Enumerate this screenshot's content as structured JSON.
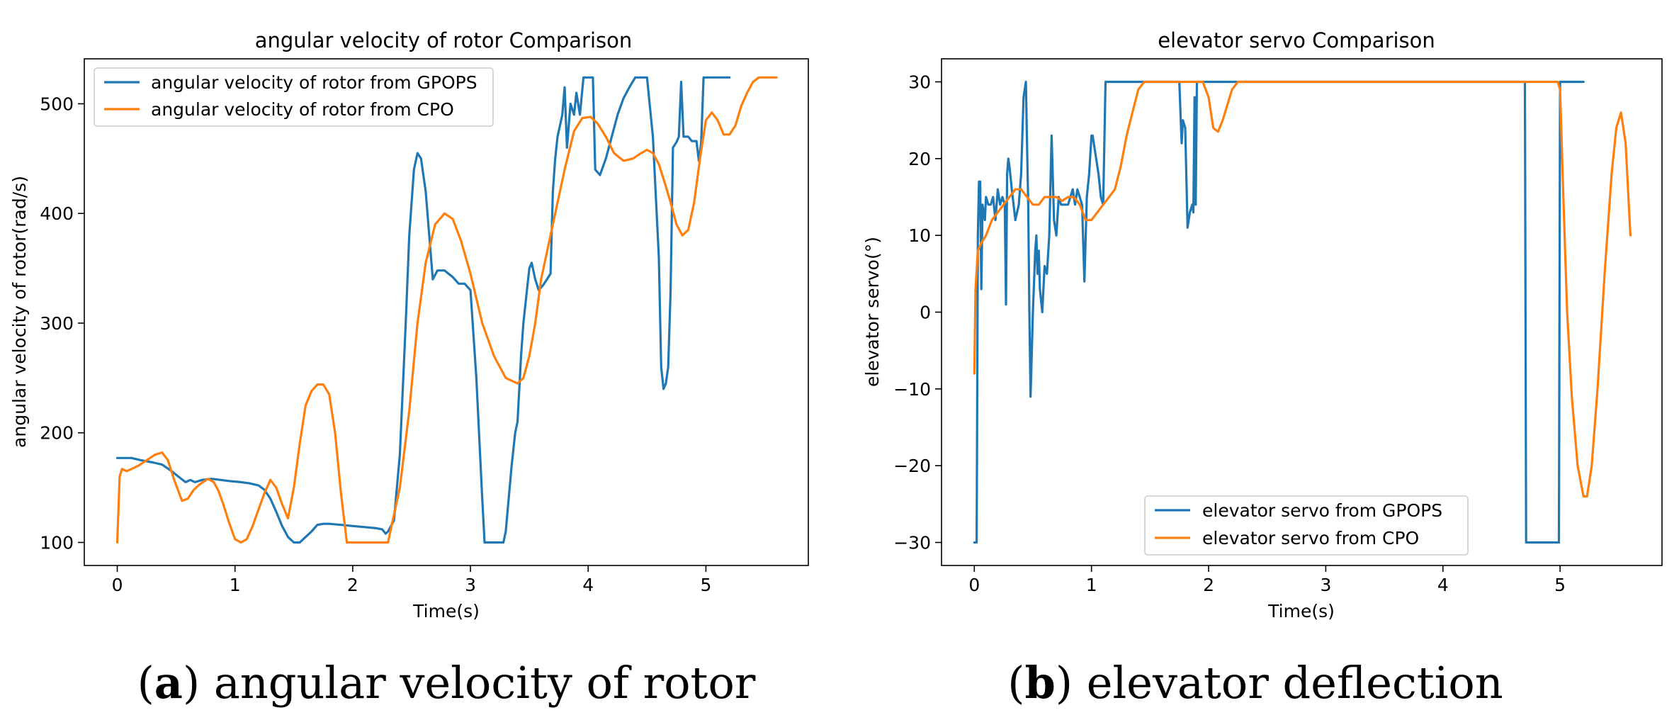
{
  "figure": {
    "caption_a_letter": "a",
    "caption_a_text": "angular velocity of rotor",
    "caption_b_letter": "b",
    "caption_b_text": "elevator deflection"
  },
  "chart_data": [
    {
      "type": "line",
      "title": "angular velocity of rotor Comparison",
      "xlabel": "Time(s)",
      "ylabel": "angular velocity of rotor(rad/s)",
      "xlim": [
        -0.28,
        5.87
      ],
      "ylim": [
        79,
        541
      ],
      "xticks": [
        0,
        1,
        2,
        3,
        4,
        5
      ],
      "yticks": [
        100,
        200,
        300,
        400,
        500
      ],
      "legend_position": "upper-left",
      "series": [
        {
          "name": "angular velocity of rotor from GPOPS",
          "color": "#1f77b4",
          "x": [
            0,
            0.05,
            0.12,
            0.2,
            0.3,
            0.38,
            0.45,
            0.52,
            0.58,
            0.62,
            0.66,
            0.72,
            0.8,
            0.88,
            0.95,
            1.05,
            1.12,
            1.2,
            1.25,
            1.3,
            1.35,
            1.4,
            1.45,
            1.5,
            1.55,
            1.6,
            1.65,
            1.7,
            1.75,
            1.8,
            1.9,
            2.0,
            2.1,
            2.2,
            2.25,
            2.28,
            2.3,
            2.35,
            2.4,
            2.45,
            2.48,
            2.52,
            2.55,
            2.58,
            2.62,
            2.65,
            2.68,
            2.72,
            2.78,
            2.85,
            2.9,
            2.95,
            3.0,
            3.05,
            3.1,
            3.12,
            3.15,
            3.2,
            3.25,
            3.28,
            3.3,
            3.35,
            3.38,
            3.4,
            3.43,
            3.45,
            3.48,
            3.5,
            3.52,
            3.55,
            3.58,
            3.62,
            3.65,
            3.68,
            3.7,
            3.72,
            3.74,
            3.76,
            3.78,
            3.8,
            3.82,
            3.85,
            3.88,
            3.9,
            3.93,
            3.96,
            3.98,
            4.0,
            4.02,
            4.04,
            4.06,
            4.1,
            4.15,
            4.2,
            4.25,
            4.3,
            4.35,
            4.4,
            4.45,
            4.48,
            4.5,
            4.55,
            4.6,
            4.62,
            4.64,
            4.66,
            4.68,
            4.7,
            4.72,
            4.75,
            4.77,
            4.79,
            4.81,
            4.83,
            4.85,
            4.88,
            4.9,
            4.92,
            4.94,
            4.96,
            4.98,
            5.0,
            5.02,
            5.05,
            5.1,
            5.15,
            5.2
          ],
          "y": [
            177,
            177,
            177,
            175,
            173,
            171,
            166,
            160,
            155,
            157,
            155,
            157,
            158,
            157,
            156,
            155,
            154,
            152,
            148,
            140,
            128,
            115,
            105,
            100,
            100,
            105,
            110,
            116,
            117,
            117,
            116,
            115,
            114,
            113,
            112,
            108,
            110,
            120,
            180,
            300,
            380,
            440,
            455,
            450,
            420,
            380,
            340,
            348,
            348,
            342,
            336,
            336,
            330,
            250,
            140,
            100,
            100,
            100,
            100,
            100,
            110,
            170,
            200,
            210,
            270,
            300,
            330,
            350,
            355,
            340,
            330,
            335,
            340,
            345,
            420,
            450,
            470,
            480,
            490,
            515,
            460,
            500,
            490,
            510,
            490,
            524,
            524,
            524,
            524,
            524,
            440,
            435,
            450,
            470,
            490,
            505,
            515,
            524,
            524,
            524,
            524,
            470,
            360,
            260,
            240,
            245,
            260,
            330,
            460,
            465,
            470,
            520,
            470,
            470,
            470,
            466,
            466,
            466,
            448,
            465,
            524,
            524,
            524,
            524,
            524,
            524,
            524
          ]
        },
        {
          "name": "angular velocity of rotor from CPO",
          "color": "#ff7f0e",
          "x": [
            0,
            0.02,
            0.04,
            0.08,
            0.12,
            0.18,
            0.25,
            0.32,
            0.38,
            0.43,
            0.48,
            0.55,
            0.6,
            0.65,
            0.7,
            0.77,
            0.82,
            0.86,
            0.9,
            0.95,
            1.0,
            1.05,
            1.1,
            1.15,
            1.2,
            1.25,
            1.3,
            1.35,
            1.4,
            1.45,
            1.5,
            1.55,
            1.6,
            1.65,
            1.7,
            1.75,
            1.8,
            1.85,
            1.9,
            1.95,
            2.0,
            2.1,
            2.2,
            2.3,
            2.4,
            2.48,
            2.55,
            2.62,
            2.7,
            2.78,
            2.85,
            2.92,
            3.0,
            3.1,
            3.2,
            3.3,
            3.4,
            3.45,
            3.5,
            3.55,
            3.6,
            3.7,
            3.8,
            3.88,
            3.95,
            4.02,
            4.08,
            4.15,
            4.22,
            4.3,
            4.38,
            4.45,
            4.5,
            4.55,
            4.6,
            4.65,
            4.7,
            4.75,
            4.8,
            4.85,
            4.9,
            4.95,
            5.0,
            5.05,
            5.1,
            5.15,
            5.2,
            5.25,
            5.3,
            5.35,
            5.4,
            5.45,
            5.5,
            5.55,
            5.6
          ],
          "y": [
            100,
            160,
            167,
            165,
            167,
            170,
            175,
            180,
            182,
            175,
            158,
            138,
            140,
            148,
            153,
            158,
            155,
            147,
            135,
            118,
            103,
            100,
            103,
            115,
            130,
            145,
            157,
            150,
            135,
            122,
            150,
            190,
            225,
            238,
            244,
            244,
            235,
            200,
            145,
            100,
            100,
            100,
            100,
            100,
            150,
            220,
            300,
            355,
            390,
            400,
            395,
            375,
            345,
            300,
            270,
            250,
            245,
            250,
            270,
            300,
            340,
            390,
            440,
            475,
            487,
            488,
            482,
            470,
            455,
            448,
            450,
            455,
            458,
            455,
            445,
            428,
            410,
            390,
            380,
            385,
            410,
            450,
            485,
            492,
            485,
            472,
            472,
            480,
            498,
            510,
            520,
            524,
            524,
            524,
            524
          ]
        }
      ]
    },
    {
      "type": "line",
      "title": "elevator servo Comparison",
      "xlabel": "Time(s)",
      "ylabel": "elevator servo(°)",
      "xlim": [
        -0.28,
        5.87
      ],
      "ylim": [
        -33,
        33
      ],
      "xticks": [
        0,
        1,
        2,
        3,
        4,
        5
      ],
      "yticks": [
        -30,
        -20,
        -10,
        0,
        10,
        20,
        30
      ],
      "legend_position": "lower-center",
      "series": [
        {
          "name": "elevator servo from GPOPS",
          "color": "#1f77b4",
          "x": [
            0,
            0.02,
            0.03,
            0.04,
            0.05,
            0.06,
            0.07,
            0.08,
            0.09,
            0.1,
            0.12,
            0.14,
            0.16,
            0.18,
            0.2,
            0.22,
            0.24,
            0.26,
            0.27,
            0.28,
            0.29,
            0.3,
            0.32,
            0.35,
            0.38,
            0.4,
            0.42,
            0.44,
            0.45,
            0.46,
            0.47,
            0.48,
            0.5,
            0.52,
            0.53,
            0.54,
            0.55,
            0.56,
            0.58,
            0.6,
            0.62,
            0.64,
            0.66,
            0.68,
            0.7,
            0.72,
            0.74,
            0.76,
            0.78,
            0.8,
            0.82,
            0.84,
            0.86,
            0.88,
            0.9,
            0.92,
            0.94,
            0.96,
            0.98,
            1.0,
            1.01,
            1.02,
            1.04,
            1.06,
            1.08,
            1.1,
            1.12,
            1.14,
            1.16,
            1.18,
            1.2,
            1.25,
            1.4,
            1.6,
            1.75,
            1.76,
            1.77,
            1.78,
            1.8,
            1.82,
            1.84,
            1.86,
            1.87,
            1.88,
            1.89,
            1.9,
            1.91,
            1.92,
            1.93,
            1.95,
            2.0,
            2.5,
            3.0,
            3.5,
            4.0,
            4.5,
            4.7,
            4.71,
            4.72,
            4.8,
            4.9,
            4.97,
            4.98,
            4.99,
            5.0,
            5.1,
            5.2
          ],
          "y": [
            -30,
            -30,
            10,
            17,
            17,
            3,
            14,
            13,
            12,
            15,
            14,
            14,
            15,
            12,
            16,
            14,
            15,
            14,
            1,
            18,
            20,
            19,
            16,
            12,
            14,
            18,
            28,
            30,
            22,
            14,
            0,
            -11,
            0,
            8,
            10,
            5,
            8,
            3,
            0,
            6,
            5,
            10,
            23,
            12,
            10,
            15,
            14,
            14,
            14,
            14,
            15,
            16,
            14,
            16,
            15,
            14,
            4,
            15,
            18,
            23,
            23,
            22,
            20,
            18,
            15,
            14,
            30,
            30,
            30,
            30,
            30,
            30,
            30,
            30,
            30,
            26,
            22,
            25,
            24,
            11,
            13,
            14,
            13,
            28,
            14,
            30,
            30,
            30,
            30,
            30,
            30,
            30,
            30,
            30,
            30,
            30,
            30,
            -30,
            -30,
            -30,
            -30,
            -30,
            -30,
            -30,
            30,
            30,
            30
          ]
        },
        {
          "name": "elevator servo from CPO",
          "color": "#ff7f0e",
          "x": [
            0,
            0.01,
            0.03,
            0.06,
            0.1,
            0.15,
            0.2,
            0.25,
            0.3,
            0.35,
            0.4,
            0.45,
            0.5,
            0.55,
            0.6,
            0.65,
            0.7,
            0.75,
            0.8,
            0.85,
            0.9,
            0.95,
            1.0,
            1.05,
            1.1,
            1.15,
            1.2,
            1.25,
            1.3,
            1.35,
            1.4,
            1.45,
            1.5,
            1.6,
            1.8,
            1.95,
            2.0,
            2.04,
            2.08,
            2.12,
            2.16,
            2.2,
            2.25,
            2.5,
            3.0,
            3.5,
            4.0,
            4.5,
            4.9,
            4.98,
            5.0,
            5.03,
            5.06,
            5.1,
            5.15,
            5.2,
            5.23,
            5.27,
            5.32,
            5.38,
            5.44,
            5.48,
            5.52,
            5.56,
            5.6
          ],
          "y": [
            -8,
            3,
            8,
            9,
            10,
            12,
            13,
            14,
            15,
            16,
            16,
            15,
            14,
            14,
            15,
            15,
            15,
            14.5,
            15,
            15,
            14,
            12,
            12,
            13,
            14,
            15,
            16,
            19,
            23,
            26,
            29,
            30,
            30,
            30,
            30,
            30,
            28,
            24,
            23.5,
            25,
            27,
            29,
            30,
            30,
            30,
            30,
            30,
            30,
            30,
            30,
            29,
            14,
            0,
            -11,
            -20,
            -24,
            -24,
            -20,
            -10,
            5,
            18,
            24,
            26,
            22,
            10
          ]
        }
      ]
    }
  ]
}
